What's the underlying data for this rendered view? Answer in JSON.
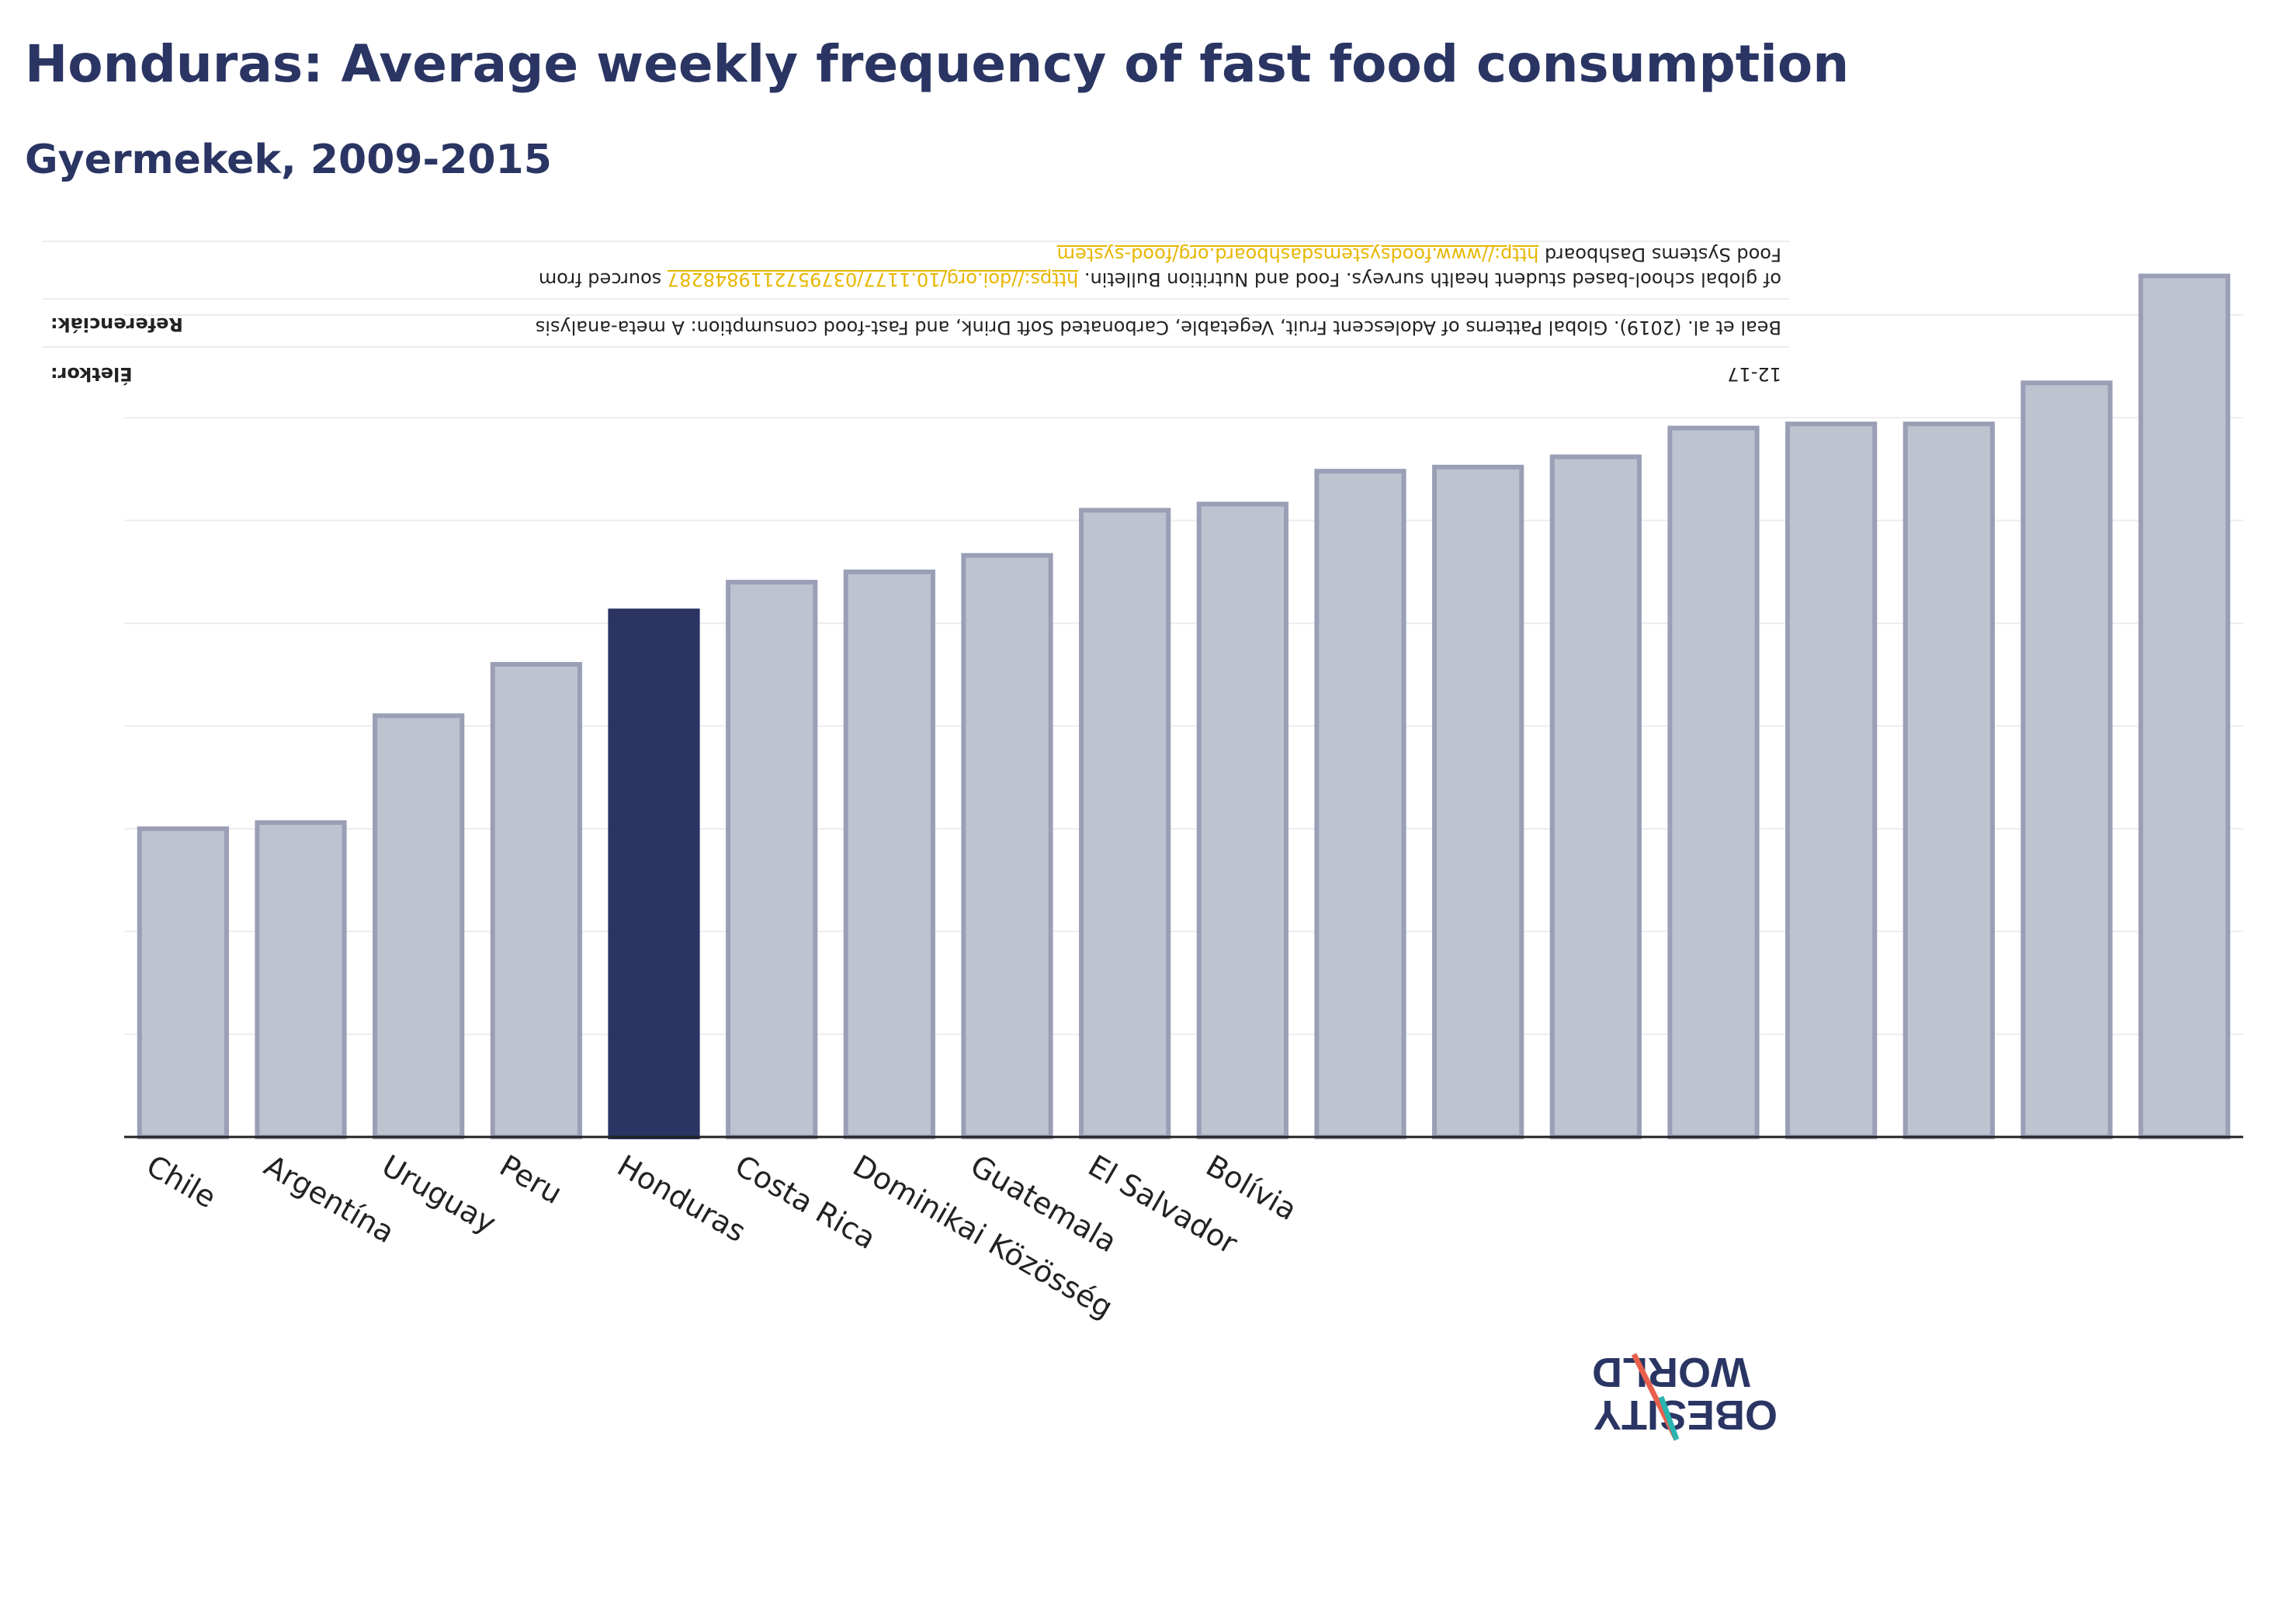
{
  "title": "Honduras: Average weekly frequency of fast food consumption",
  "subtitle": "Gyermekek, 2009-2015",
  "notes": {
    "age_label": "Életkor:",
    "age_value": "12-17",
    "ref_label": "Referenciák:",
    "ref_line1": "Beal et al. (2019). Global Patterns of Adolescent Fruit, Vegetable, Carbonated Soft Drink, and Fast-food consumption: A meta-analysis",
    "ref_line2_prefix": "of global school-based student health surveys. Food and Nutrition Bulletin.",
    "ref_link1": "https://doi.org/10.1177/0379572119848287",
    "ref_line2_suffix": "sourced from",
    "ref_line3_prefix": "Food Systems Dashboard",
    "ref_link2": "http://www.foodsystemsdashboard.org/food-system"
  },
  "logo": {
    "line1": "OBESITY",
    "line2": "WORLD"
  },
  "colors": {
    "highlight": "#2a3563",
    "bar": "#bfc2cf",
    "bar_border": "#9a9fb6",
    "axis": "#222222",
    "grid": "#ececf1",
    "link": "#e8b600"
  },
  "chart_data": {
    "type": "bar",
    "categories": [
      "Chile",
      "Argentína",
      "Uruguay",
      "Peru",
      "Honduras",
      "Costa Rica",
      "Dominikai Közösség",
      "Guatemala",
      "El Salvador",
      "Bolívia",
      "",
      "",
      "",
      "",
      "",
      "",
      "",
      ""
    ],
    "values": [
      1.5,
      1.53,
      2.05,
      2.3,
      2.56,
      2.7,
      2.75,
      2.83,
      3.05,
      3.08,
      3.24,
      3.26,
      3.31,
      3.45,
      3.47,
      3.47,
      3.67,
      4.19
    ],
    "highlight": "Honduras",
    "ylim": [
      0,
      4.4
    ],
    "grid": true,
    "xlabel": "",
    "ylabel": ""
  }
}
